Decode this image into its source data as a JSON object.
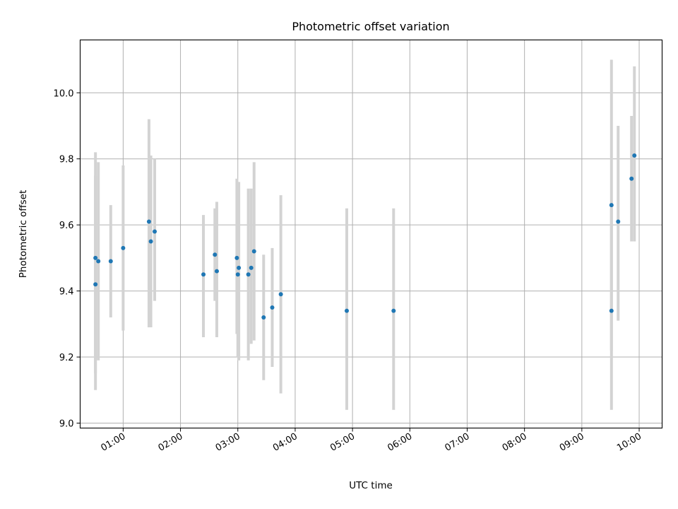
{
  "chart_data": {
    "type": "scatter",
    "title": "Photometric offset variation",
    "xlabel": "UTC time",
    "ylabel": "Photometric offset",
    "grid": true,
    "xlim": [
      "00:15",
      "10:24"
    ],
    "ylim": [
      8.985,
      10.16
    ],
    "xticks": [
      "01:00",
      "02:00",
      "03:00",
      "04:00",
      "05:00",
      "06:00",
      "07:00",
      "08:00",
      "09:00",
      "10:00"
    ],
    "yticks": [
      "9.0",
      "9.2",
      "9.4",
      "9.6",
      "9.8",
      "10.0"
    ],
    "point_color": "#1f77b4",
    "errorbar_color": "#d3d3d3",
    "points": [
      {
        "time": "00:31",
        "y": 9.5,
        "low": 9.1,
        "high": 9.82
      },
      {
        "time": "00:31",
        "y": 9.42,
        "low": 9.15,
        "high": 9.75
      },
      {
        "time": "00:34",
        "y": 9.49,
        "low": 9.19,
        "high": 9.79
      },
      {
        "time": "00:47",
        "y": 9.49,
        "low": 9.32,
        "high": 9.66
      },
      {
        "time": "01:00",
        "y": 9.53,
        "low": 9.28,
        "high": 9.78
      },
      {
        "time": "01:27",
        "y": 9.61,
        "low": 9.29,
        "high": 9.92
      },
      {
        "time": "01:29",
        "y": 9.55,
        "low": 9.29,
        "high": 9.81
      },
      {
        "time": "01:33",
        "y": 9.58,
        "low": 9.37,
        "high": 9.8
      },
      {
        "time": "02:24",
        "y": 9.45,
        "low": 9.26,
        "high": 9.63
      },
      {
        "time": "02:36",
        "y": 9.51,
        "low": 9.37,
        "high": 9.65
      },
      {
        "time": "02:38",
        "y": 9.46,
        "low": 9.26,
        "high": 9.67
      },
      {
        "time": "02:59",
        "y": 9.5,
        "low": 9.27,
        "high": 9.74
      },
      {
        "time": "03:00",
        "y": 9.45,
        "low": 9.2,
        "high": 9.7
      },
      {
        "time": "03:01",
        "y": 9.47,
        "low": 9.19,
        "high": 9.73
      },
      {
        "time": "03:11",
        "y": 9.45,
        "low": 9.19,
        "high": 9.71
      },
      {
        "time": "03:14",
        "y": 9.47,
        "low": 9.24,
        "high": 9.71
      },
      {
        "time": "03:17",
        "y": 9.52,
        "low": 9.25,
        "high": 9.79
      },
      {
        "time": "03:27",
        "y": 9.32,
        "low": 9.13,
        "high": 9.51
      },
      {
        "time": "03:36",
        "y": 9.35,
        "low": 9.17,
        "high": 9.53
      },
      {
        "time": "03:45",
        "y": 9.39,
        "low": 9.09,
        "high": 9.69
      },
      {
        "time": "04:54",
        "y": 9.34,
        "low": 9.04,
        "high": 9.65
      },
      {
        "time": "05:43",
        "y": 9.34,
        "low": 9.04,
        "high": 9.65
      },
      {
        "time": "09:31",
        "y": 9.66,
        "low": 9.22,
        "high": 10.1
      },
      {
        "time": "09:31",
        "y": 9.34,
        "low": 9.04,
        "high": 9.65
      },
      {
        "time": "09:38",
        "y": 9.61,
        "low": 9.31,
        "high": 9.9
      },
      {
        "time": "09:52",
        "y": 9.74,
        "low": 9.55,
        "high": 9.93
      },
      {
        "time": "09:55",
        "y": 9.81,
        "low": 9.55,
        "high": 10.08
      }
    ]
  }
}
